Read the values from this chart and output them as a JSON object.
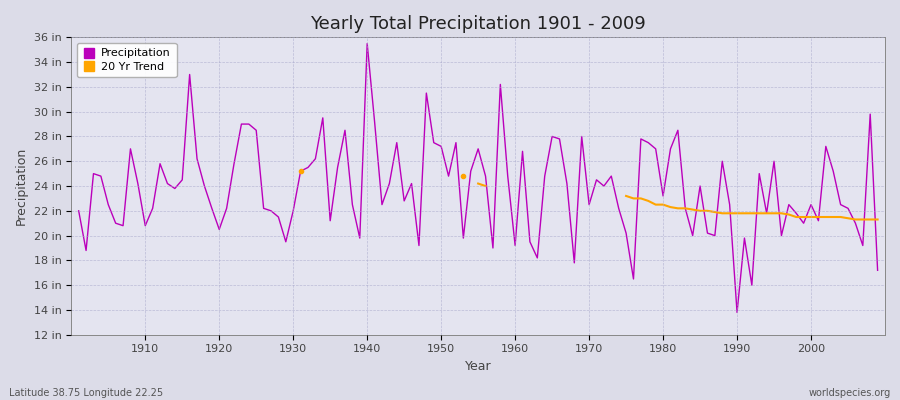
{
  "title": "Yearly Total Precipitation 1901 - 2009",
  "xlabel": "Year",
  "ylabel": "Precipitation",
  "bottom_left_label": "Latitude 38.75 Longitude 22.25",
  "bottom_right_label": "worldspecies.org",
  "ylim": [
    12,
    36
  ],
  "ytick_step": 2,
  "line_color": "#BB00BB",
  "trend_color": "#FFA500",
  "bg_color": "#DCDCE8",
  "plot_bg_color": "#E4E4F0",
  "legend_labels": [
    "Precipitation",
    "20 Yr Trend"
  ],
  "years": [
    1901,
    1902,
    1903,
    1904,
    1905,
    1906,
    1907,
    1908,
    1909,
    1910,
    1911,
    1912,
    1913,
    1914,
    1915,
    1916,
    1917,
    1918,
    1919,
    1920,
    1921,
    1922,
    1923,
    1924,
    1925,
    1926,
    1927,
    1928,
    1929,
    1930,
    1931,
    1932,
    1933,
    1934,
    1935,
    1936,
    1937,
    1938,
    1939,
    1940,
    1941,
    1942,
    1943,
    1944,
    1945,
    1946,
    1947,
    1948,
    1949,
    1950,
    1951,
    1952,
    1953,
    1954,
    1955,
    1956,
    1957,
    1958,
    1959,
    1960,
    1961,
    1962,
    1963,
    1964,
    1965,
    1966,
    1967,
    1968,
    1969,
    1970,
    1971,
    1972,
    1973,
    1974,
    1975,
    1976,
    1977,
    1978,
    1979,
    1980,
    1981,
    1982,
    1983,
    1984,
    1985,
    1986,
    1987,
    1988,
    1989,
    1990,
    1991,
    1992,
    1993,
    1994,
    1995,
    1996,
    1997,
    1998,
    1999,
    2000,
    2001,
    2002,
    2003,
    2004,
    2005,
    2006,
    2007,
    2008,
    2009
  ],
  "precip": [
    22.0,
    18.8,
    25.0,
    24.8,
    22.5,
    21.0,
    20.8,
    27.0,
    24.2,
    20.8,
    22.2,
    25.8,
    24.2,
    23.8,
    24.5,
    33.0,
    26.2,
    24.0,
    22.2,
    20.5,
    22.2,
    25.8,
    29.0,
    29.0,
    28.5,
    22.2,
    22.0,
    21.5,
    19.5,
    22.0,
    25.2,
    25.5,
    26.2,
    29.5,
    21.2,
    25.5,
    28.5,
    22.5,
    19.8,
    35.5,
    29.2,
    22.5,
    24.2,
    27.5,
    22.8,
    24.2,
    19.2,
    31.5,
    27.5,
    27.2,
    24.8,
    27.5,
    19.8,
    25.2,
    27.0,
    24.8,
    19.0,
    32.2,
    24.8,
    19.2,
    26.8,
    19.5,
    18.2,
    24.8,
    28.0,
    27.8,
    24.2,
    17.8,
    28.0,
    22.5,
    24.5,
    24.0,
    24.8,
    22.2,
    20.2,
    16.5,
    27.8,
    27.5,
    27.0,
    23.2,
    27.0,
    28.5,
    22.2,
    20.0,
    24.0,
    20.2,
    20.0,
    26.0,
    22.5,
    13.8,
    19.8,
    16.0,
    25.0,
    21.8,
    26.0,
    20.0,
    22.5,
    21.8,
    21.0,
    22.5,
    21.2,
    27.2,
    25.2,
    22.5,
    22.2,
    21.0,
    19.2,
    29.8,
    17.2
  ],
  "trend_segments": [
    {
      "years": [
        1931
      ],
      "vals": [
        25.2
      ]
    },
    {
      "years": [
        1953
      ],
      "vals": [
        24.8
      ]
    },
    {
      "years": [
        1955,
        1956
      ],
      "vals": [
        24.2,
        24.0
      ]
    },
    {
      "years": [
        1975,
        1976,
        1977,
        1978,
        1979,
        1980,
        1981,
        1982,
        1983,
        1984,
        1985,
        1986,
        1987,
        1988,
        1989,
        1990,
        1991,
        1992,
        1993,
        1994,
        1995,
        1996,
        1997,
        1998,
        1999,
        2000,
        2001,
        2002,
        2003,
        2004,
        2005,
        2006,
        2007,
        2008,
        2009
      ],
      "vals": [
        23.2,
        23.0,
        23.0,
        22.8,
        22.5,
        22.5,
        22.3,
        22.2,
        22.2,
        22.1,
        22.0,
        22.0,
        21.9,
        21.8,
        21.8,
        21.8,
        21.8,
        21.8,
        21.8,
        21.8,
        21.8,
        21.8,
        21.7,
        21.5,
        21.5,
        21.5,
        21.5,
        21.5,
        21.5,
        21.5,
        21.4,
        21.3,
        21.3,
        21.3,
        21.3
      ]
    }
  ]
}
